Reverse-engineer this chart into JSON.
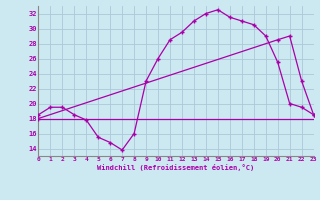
{
  "line1_x": [
    0,
    1,
    2,
    3,
    4,
    5,
    6,
    7,
    8,
    9,
    10,
    11,
    12,
    13,
    14,
    15,
    16,
    17,
    18,
    19,
    20,
    21,
    22,
    23
  ],
  "line1_y": [
    18.5,
    19.5,
    19.5,
    18.5,
    17.8,
    15.5,
    14.8,
    13.8,
    16.0,
    23.0,
    26.0,
    28.5,
    29.5,
    31.0,
    32.0,
    32.5,
    31.5,
    31.0,
    30.5,
    29.0,
    25.5,
    20.0,
    19.5,
    18.5
  ],
  "line2_x": [
    0,
    20,
    21,
    22,
    23
  ],
  "line2_y": [
    18.0,
    28.5,
    29.0,
    23.0,
    18.5
  ],
  "line3_x": [
    0,
    23
  ],
  "line3_y": [
    18.0,
    18.0
  ],
  "color": "#aa00aa",
  "bgcolor": "#cce8f0",
  "grid_color": "#aac8d8",
  "xlabel": "Windchill (Refroidissement éolien,°C)",
  "ylim": [
    13,
    33
  ],
  "xlim": [
    0,
    23
  ],
  "yticks": [
    14,
    16,
    18,
    20,
    22,
    24,
    26,
    28,
    30,
    32
  ],
  "xticks": [
    0,
    1,
    2,
    3,
    4,
    5,
    6,
    7,
    8,
    9,
    10,
    11,
    12,
    13,
    14,
    15,
    16,
    17,
    18,
    19,
    20,
    21,
    22,
    23
  ]
}
